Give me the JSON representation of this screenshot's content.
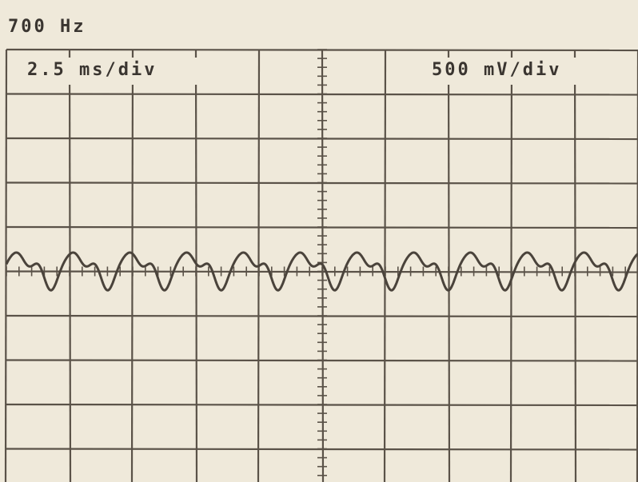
{
  "header": {
    "title": "700 Hz"
  },
  "screen": {
    "timebase": "2.5 ms/div",
    "vertical": "500 mV/div"
  }
}
